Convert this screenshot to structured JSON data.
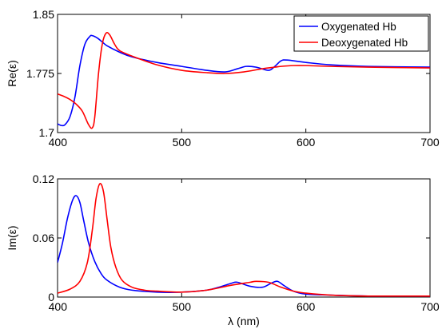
{
  "chart_data": [
    {
      "type": "line",
      "ylabel": "Re(ε)",
      "xlabel": "",
      "xlim": [
        400,
        700
      ],
      "ylim": [
        1.7,
        1.85
      ],
      "xticks": [
        "400",
        "500",
        "600",
        "700"
      ],
      "yticks": [
        "1.7",
        "1.775",
        "1.85"
      ],
      "legend": {
        "position": "top-right",
        "entries": [
          "Oxygenated Hb",
          "Deoxygenated Hb"
        ]
      },
      "series": [
        {
          "name": "Oxygenated Hb",
          "color": "#0000ff",
          "x": [
            400,
            403,
            406,
            410,
            414,
            418,
            422,
            426,
            428,
            432,
            436,
            440,
            450,
            460,
            480,
            500,
            520,
            535,
            545,
            552,
            560,
            570,
            575,
            580,
            585,
            600,
            620,
            650,
            700
          ],
          "y": [
            1.711,
            1.709,
            1.71,
            1.72,
            1.745,
            1.785,
            1.812,
            1.822,
            1.823,
            1.82,
            1.815,
            1.81,
            1.802,
            1.796,
            1.789,
            1.784,
            1.779,
            1.777,
            1.781,
            1.784,
            1.783,
            1.779,
            1.784,
            1.791,
            1.792,
            1.789,
            1.786,
            1.784,
            1.783
          ]
        },
        {
          "name": "Deoxygenated Hb",
          "color": "#ff0000",
          "x": [
            400,
            405,
            410,
            415,
            420,
            425,
            428,
            430,
            433,
            436,
            439,
            442,
            446,
            450,
            460,
            480,
            500,
            520,
            535,
            550,
            565,
            575,
            580,
            590,
            600,
            620,
            650,
            700
          ],
          "y": [
            1.749,
            1.746,
            1.742,
            1.736,
            1.727,
            1.71,
            1.706,
            1.72,
            1.775,
            1.812,
            1.826,
            1.824,
            1.812,
            1.804,
            1.797,
            1.786,
            1.779,
            1.776,
            1.775,
            1.777,
            1.781,
            1.783,
            1.784,
            1.785,
            1.785,
            1.784,
            1.783,
            1.782
          ]
        }
      ]
    },
    {
      "type": "line",
      "ylabel": "Im(ε)",
      "xlabel": "λ (nm)",
      "xlim": [
        400,
        700
      ],
      "ylim": [
        0,
        0.12
      ],
      "xticks": [
        "400",
        "500",
        "600",
        "700"
      ],
      "yticks": [
        "0",
        "0.06",
        "0.12"
      ],
      "series": [
        {
          "name": "Oxygenated Hb",
          "color": "#0000ff",
          "x": [
            400,
            404,
            408,
            412,
            415,
            418,
            421,
            425,
            430,
            435,
            440,
            450,
            460,
            480,
            500,
            520,
            530,
            540,
            545,
            555,
            565,
            572,
            577,
            582,
            590,
            600,
            620,
            650,
            700
          ],
          "y": [
            0.035,
            0.055,
            0.08,
            0.098,
            0.103,
            0.096,
            0.078,
            0.055,
            0.036,
            0.024,
            0.017,
            0.01,
            0.007,
            0.005,
            0.005,
            0.007,
            0.01,
            0.014,
            0.015,
            0.011,
            0.01,
            0.014,
            0.016,
            0.012,
            0.006,
            0.003,
            0.002,
            0.001,
            0.001
          ]
        },
        {
          "name": "Deoxygenated Hb",
          "color": "#ff0000",
          "x": [
            400,
            410,
            418,
            424,
            428,
            431,
            434,
            437,
            440,
            443,
            447,
            452,
            460,
            470,
            480,
            500,
            520,
            540,
            555,
            560,
            570,
            580,
            590,
            600,
            620,
            650,
            700
          ],
          "y": [
            0.004,
            0.008,
            0.016,
            0.035,
            0.068,
            0.1,
            0.115,
            0.107,
            0.078,
            0.05,
            0.03,
            0.017,
            0.01,
            0.007,
            0.006,
            0.005,
            0.007,
            0.012,
            0.015,
            0.016,
            0.015,
            0.01,
            0.006,
            0.004,
            0.002,
            0.001,
            0.001
          ]
        }
      ]
    }
  ]
}
